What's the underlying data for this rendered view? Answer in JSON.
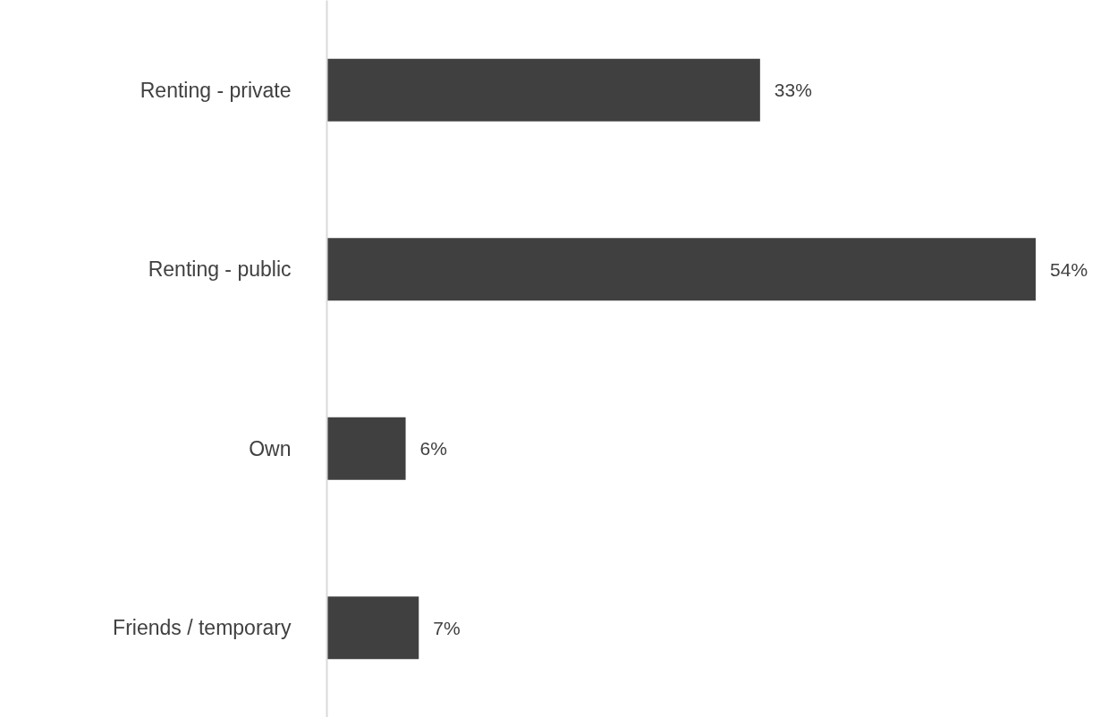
{
  "chart_data": {
    "type": "bar",
    "orientation": "horizontal",
    "categories": [
      "Renting - private",
      "Renting - public",
      "Own",
      "Friends / temporary"
    ],
    "values": [
      33,
      54,
      6,
      7
    ],
    "value_labels": [
      "33%",
      "54%",
      "6%",
      "7%"
    ],
    "color": "#404040"
  }
}
